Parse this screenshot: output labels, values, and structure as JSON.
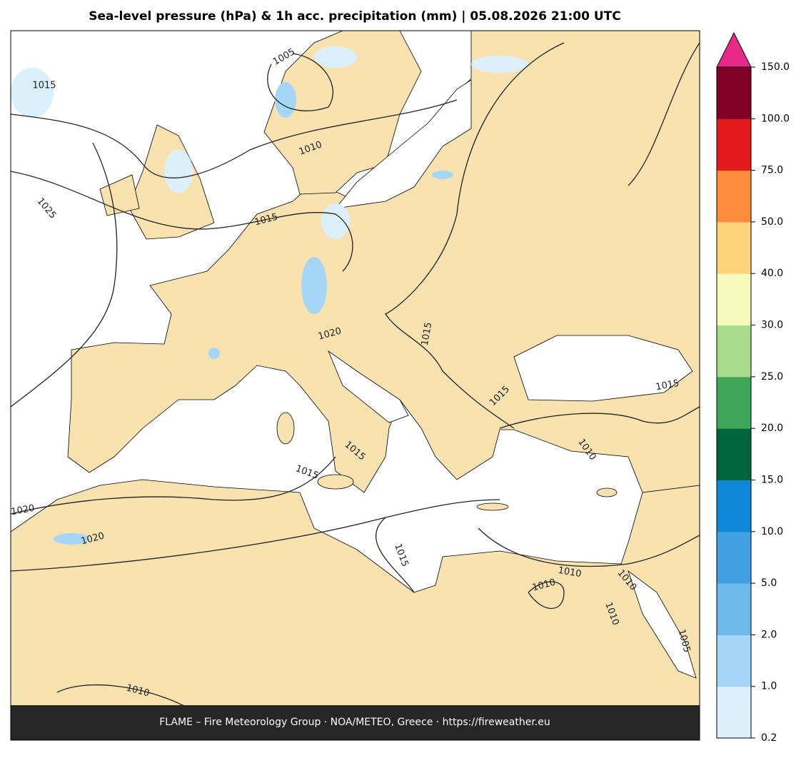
{
  "title": "Sea-level pressure (hPa) & 1h acc. precipitation (mm)  |  05.08.2026 21:00 UTC",
  "footer": "FLAME – Fire Meteorology Group · NOA/METEO, Greece · https://fireweather.eu",
  "colorbar": {
    "ticks": [
      0.2,
      {
        "value": 1,
        "label": "1.0"
      },
      {
        "value": 2,
        "label": "2.0"
      },
      {
        "value": 5,
        "label": "5.0"
      },
      {
        "value": 10,
        "label": "10.0"
      },
      {
        "value": 15,
        "label": "15.0"
      },
      {
        "value": 20,
        "label": "20.0"
      },
      {
        "value": 25,
        "label": "25.0"
      },
      {
        "value": 30,
        "label": "30.0"
      },
      {
        "value": 40,
        "label": "40.0"
      },
      {
        "value": 50,
        "label": "50.0"
      },
      {
        "value": 75,
        "label": "75.0"
      },
      {
        "value": 100,
        "label": "100.0"
      },
      {
        "value": 150,
        "label": "150.0"
      }
    ],
    "colors": [
      "#dcf0fc",
      "#a6d6f5",
      "#6cb9ea",
      "#42a1e3",
      "#0f87d9",
      "#00643a",
      "#3ea659",
      "#a8dc8a",
      "#f7f8bb",
      "#fed47a",
      "#fd8d3c",
      "#e31a1c",
      "#800026"
    ],
    "extend_color": "#e7298a"
  },
  "contour_labels": [
    "1005",
    "1015",
    "1010",
    "1025",
    "1015",
    "1020",
    "1015",
    "1015",
    "1015",
    "1010",
    "1015",
    "1015",
    "1020",
    "1020",
    "1015",
    "1010",
    "1010",
    "1010",
    "1010",
    "1005",
    "1010"
  ]
}
